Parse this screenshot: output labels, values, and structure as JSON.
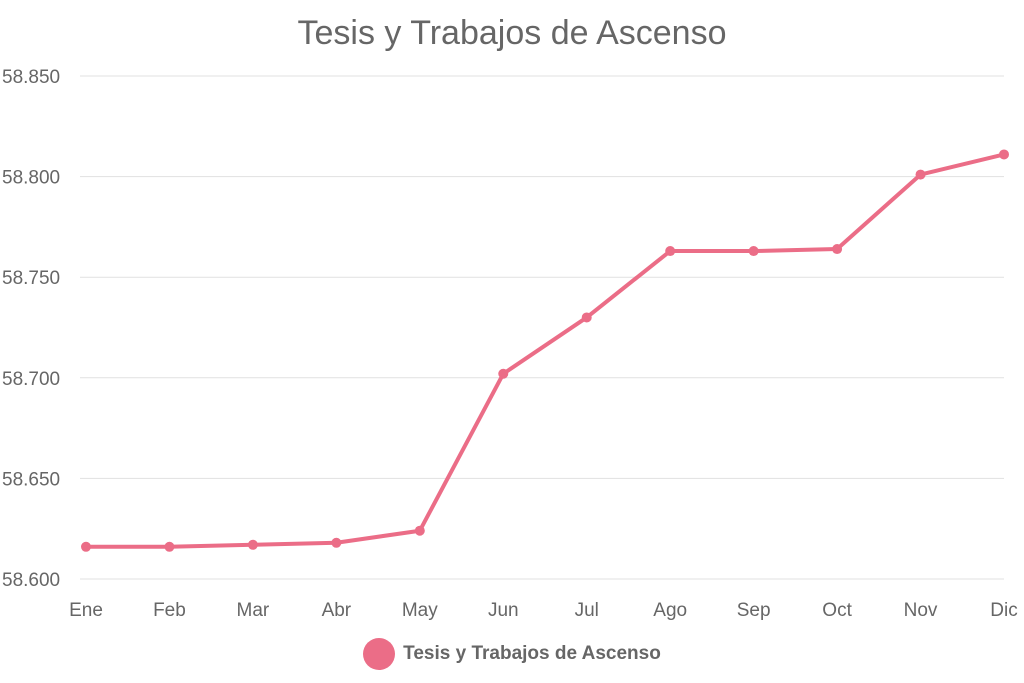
{
  "chart_data": {
    "type": "line",
    "title": "Tesis y Trabajos de Ascenso",
    "categories": [
      "Ene",
      "Feb",
      "Mar",
      "Abr",
      "May",
      "Jun",
      "Jul",
      "Ago",
      "Sep",
      "Oct",
      "Nov",
      "Dic"
    ],
    "series": [
      {
        "name": "Tesis y Trabajos de Ascenso",
        "color": "#eb6d87",
        "values": [
          58616,
          58616,
          58617,
          58618,
          58624,
          58702,
          58730,
          58763,
          58763,
          58764,
          58801,
          58811
        ]
      }
    ],
    "ylim": [
      58600,
      58850
    ],
    "yticks": [
      "58.600",
      "58.650",
      "58.700",
      "58.750",
      "58.800",
      "58.850"
    ],
    "grid": true,
    "legend_position": "bottom"
  }
}
